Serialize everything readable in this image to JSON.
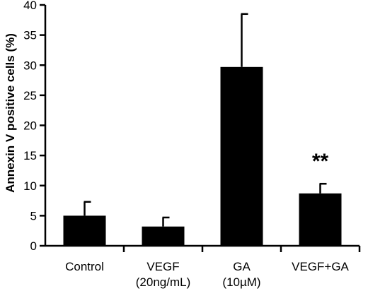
{
  "chart_data": {
    "type": "bar",
    "categories": [
      [
        "Control"
      ],
      [
        "VEGF",
        "(20ng/mL)"
      ],
      [
        "GA",
        "(10µM)"
      ],
      [
        "VEGF+GA"
      ]
    ],
    "values": [
      5.0,
      3.2,
      29.7,
      8.7
    ],
    "error_upper": [
      7.3,
      4.7,
      38.5,
      10.3
    ],
    "ylabel": "Annexin V positive cells (%)",
    "xlabel": "",
    "ylim": [
      0,
      40
    ],
    "yticks": [
      "0",
      "5",
      "10",
      "15",
      "20",
      "25",
      "30",
      "35",
      "40"
    ],
    "annotations": [
      {
        "category_index": 3,
        "text": "**"
      }
    ],
    "grid": false,
    "bar_color": "#000000"
  }
}
